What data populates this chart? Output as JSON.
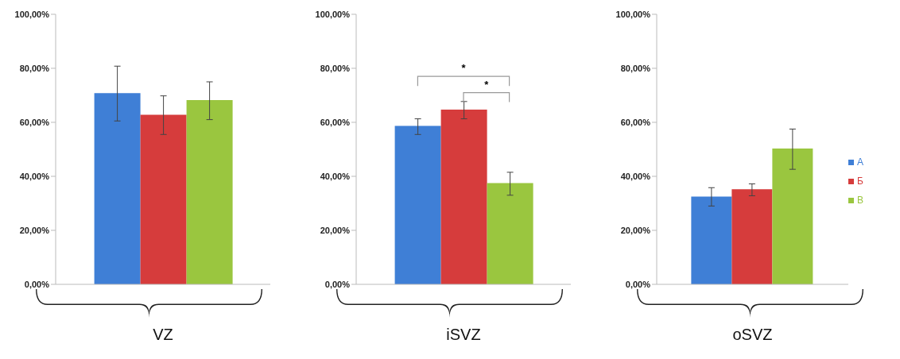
{
  "chart_data": [
    {
      "type": "bar",
      "categories": [
        "VZ"
      ],
      "series": [
        {
          "color": "#3f7fd6",
          "values": [
            70.8
          ],
          "errors": [
            [
              60.5,
              80.8
            ]
          ]
        },
        {
          "color": "#d63c3c",
          "values": [
            62.8
          ],
          "errors": [
            [
              55.5,
              69.8
            ]
          ]
        },
        {
          "color": "#9ac63f",
          "values": [
            68.2
          ],
          "errors": [
            [
              61,
              75
            ]
          ]
        }
      ],
      "ylim": [
        0,
        100
      ],
      "yticks": [
        {
          "value": 0,
          "label": "0,00%"
        },
        {
          "value": 20,
          "label": "20,00%"
        },
        {
          "value": 40,
          "label": "40,00%"
        },
        {
          "value": 60,
          "label": "60,00%"
        },
        {
          "value": 80,
          "label": "80,00%"
        },
        {
          "value": 100,
          "label": "100,00%"
        }
      ]
    },
    {
      "type": "bar",
      "categories": [
        "iSVZ"
      ],
      "series": [
        {
          "color": "#3f7fd6",
          "values": [
            58.7
          ],
          "errors": [
            [
              55.5,
              61.3
            ]
          ]
        },
        {
          "color": "#d63c3c",
          "values": [
            64.7
          ],
          "errors": [
            [
              61.3,
              67.7
            ]
          ]
        },
        {
          "color": "#9ac63f",
          "values": [
            37.5
          ],
          "errors": [
            [
              33,
              41.5
            ]
          ]
        }
      ],
      "ylim": [
        0,
        100
      ],
      "yticks": [
        {
          "value": 0,
          "label": "0,00%"
        },
        {
          "value": 20,
          "label": "20,00%"
        },
        {
          "value": 40,
          "label": "40,00%"
        },
        {
          "value": 60,
          "label": "60,00%"
        },
        {
          "value": 80,
          "label": "80,00%"
        },
        {
          "value": 100,
          "label": "100,00%"
        }
      ],
      "annotations": [
        "*",
        "*"
      ]
    },
    {
      "type": "bar",
      "categories": [
        "oSVZ"
      ],
      "series": [
        {
          "name": "А",
          "color": "#3f7fd6",
          "values": [
            32.5
          ],
          "errors": [
            [
              29,
              35.8
            ]
          ]
        },
        {
          "name": "Б",
          "color": "#d63c3c",
          "values": [
            35.2
          ],
          "errors": [
            [
              32.8,
              37.2
            ]
          ]
        },
        {
          "name": "В",
          "color": "#9ac63f",
          "values": [
            50.3
          ],
          "errors": [
            [
              42.6,
              57.5
            ]
          ]
        }
      ],
      "ylim": [
        0,
        100
      ],
      "yticks": [
        {
          "value": 0,
          "label": "0,00%"
        },
        {
          "value": 20,
          "label": "20,00%"
        },
        {
          "value": 40,
          "label": "40,00%"
        },
        {
          "value": 60,
          "label": "60,00%"
        },
        {
          "value": 80,
          "label": "80,00%"
        },
        {
          "value": 100,
          "label": "100,00%"
        }
      ],
      "legend": "right"
    }
  ]
}
